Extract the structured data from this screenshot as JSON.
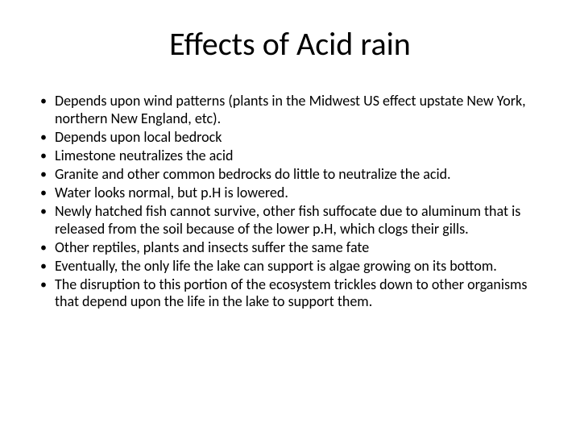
{
  "slide": {
    "title": "Effects of Acid rain",
    "title_fontsize": 40,
    "body_fontsize": 18,
    "background_color": "#ffffff",
    "text_color": "#000000",
    "bullet_marker": "•",
    "bullets": [
      "Depends upon wind patterns (plants in the Midwest US effect upstate New York, northern New England, etc).",
      "Depends upon local bedrock",
      "Limestone neutralizes the acid",
      "Granite and other common bedrocks do little to neutralize the acid.",
      "Water looks normal, but p.H is lowered.",
      "Newly hatched fish cannot survive, other fish suffocate due to aluminum that is released from the soil because of the lower p.H, which clogs their gills.",
      "Other reptiles, plants and insects suffer the same fate",
      "Eventually, the only life the lake can support is algae growing on its bottom.",
      "The disruption to this portion of the ecosystem trickles down to other organisms that depend upon the life in the lake to support them."
    ]
  }
}
